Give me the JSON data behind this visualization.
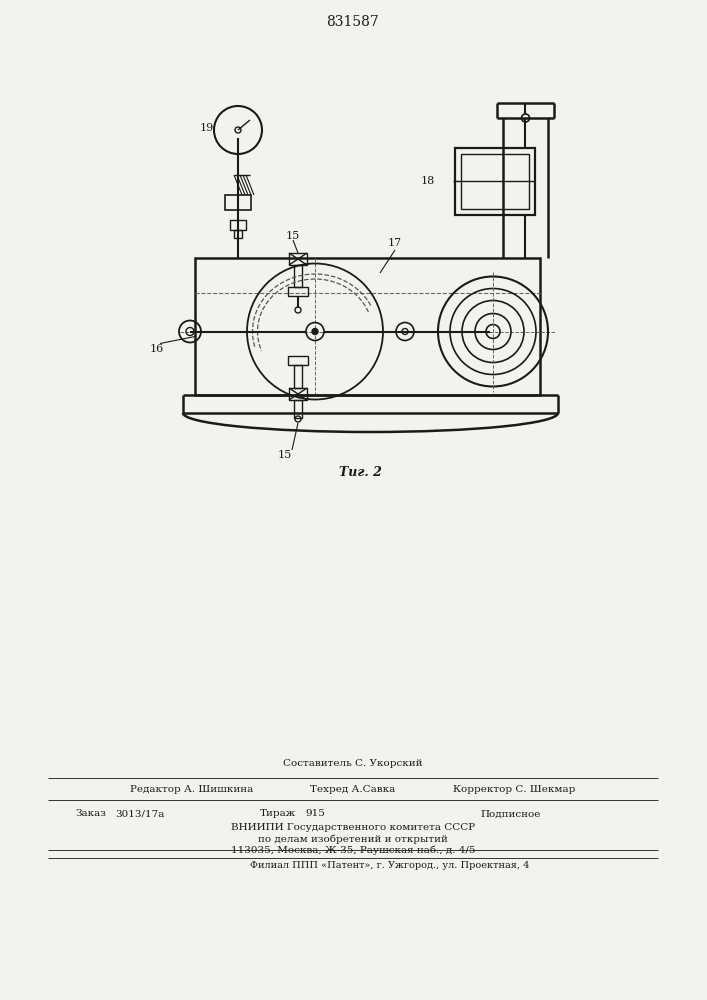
{
  "title": "831587",
  "fig_label": "Τиг. 2",
  "bg_color": "#f2f2ee",
  "line_color": "#1a1a1a",
  "footer_line0": "Составитель С. Укорский",
  "footer_line1_left": "Редактор А. Шишкина",
  "footer_line1_mid": "Техред А.Савка",
  "footer_line1_right": "Корректор С. Шекмар",
  "footer_line2_a": "Заказ",
  "footer_line2_b": "3013/17а",
  "footer_line2_c": "Тираж",
  "footer_line2_d": "915",
  "footer_line2_e": "Подписное",
  "footer_line3": "ВНИИПИ Государственного комитета СССР",
  "footer_line4": "по делам изобретений и открытий",
  "footer_line5": "113035, Москва, Ж-35, Раушская наб., д. 4/5",
  "footer_line6": "Филиал ППП «Патент», г. Ужгород., ул. Проектная, 4"
}
